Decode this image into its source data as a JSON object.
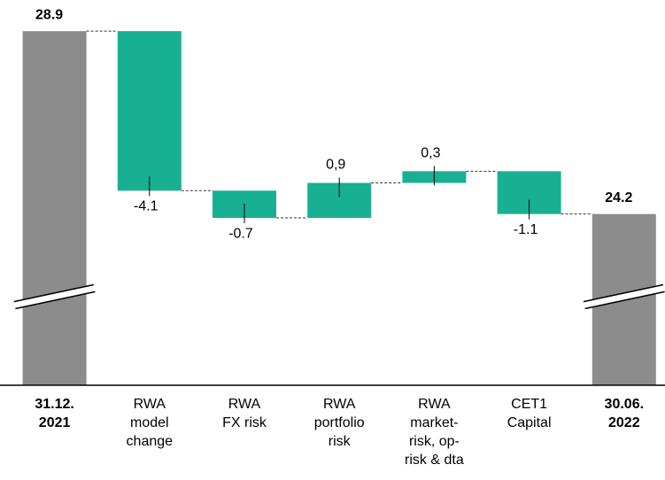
{
  "chart_data": {
    "type": "waterfall",
    "categories": [
      [
        "31.12.",
        "2021"
      ],
      [
        "RWA",
        "model",
        "change"
      ],
      [
        "RWA",
        "FX risk"
      ],
      [
        "RWA",
        "portfolio",
        "risk"
      ],
      [
        "RWA",
        "market-",
        "risk,  op-",
        "risk & dta"
      ],
      [
        "CET1",
        "Capital"
      ],
      [
        "30.06.",
        "2022"
      ]
    ],
    "values": [
      28.9,
      -4.1,
      -0.7,
      0.9,
      0.3,
      -1.1,
      24.2
    ],
    "value_labels": [
      "28.9",
      "-4.1",
      "-0.7",
      "0,9",
      "0,3",
      "-1.1",
      "24.2"
    ],
    "totals": [
      true,
      false,
      false,
      false,
      false,
      false,
      true
    ],
    "total_color": "#8c8c8c",
    "delta_color": "#17b093",
    "ylim": [
      19.8,
      29.7
    ],
    "axis_break": true
  }
}
